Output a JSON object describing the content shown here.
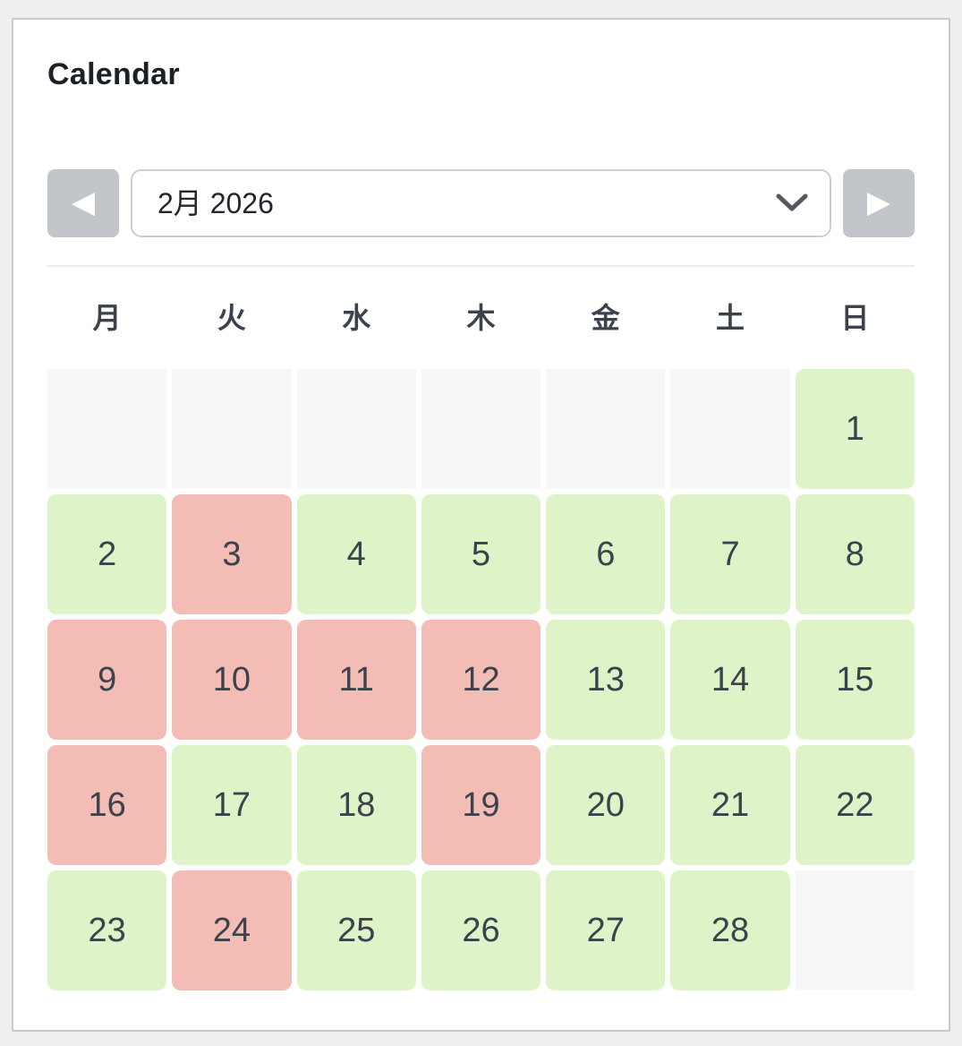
{
  "card": {
    "title": "Calendar"
  },
  "nav": {
    "month_value": "2月 2026"
  },
  "icons": {
    "prev": "◀",
    "next": "▶",
    "chevron": "chevron-down"
  },
  "grid": {
    "weekdays": [
      "月",
      "火",
      "水",
      "木",
      "金",
      "土",
      "日"
    ],
    "cells": [
      {
        "day": "",
        "status": "empty"
      },
      {
        "day": "",
        "status": "empty"
      },
      {
        "day": "",
        "status": "empty"
      },
      {
        "day": "",
        "status": "empty"
      },
      {
        "day": "",
        "status": "empty"
      },
      {
        "day": "",
        "status": "empty"
      },
      {
        "day": "1",
        "status": "available"
      },
      {
        "day": "2",
        "status": "available"
      },
      {
        "day": "3",
        "status": "unavailable"
      },
      {
        "day": "4",
        "status": "available"
      },
      {
        "day": "5",
        "status": "available"
      },
      {
        "day": "6",
        "status": "available"
      },
      {
        "day": "7",
        "status": "available"
      },
      {
        "day": "8",
        "status": "available"
      },
      {
        "day": "9",
        "status": "unavailable"
      },
      {
        "day": "10",
        "status": "unavailable"
      },
      {
        "day": "11",
        "status": "unavailable"
      },
      {
        "day": "12",
        "status": "unavailable"
      },
      {
        "day": "13",
        "status": "available"
      },
      {
        "day": "14",
        "status": "available"
      },
      {
        "day": "15",
        "status": "available"
      },
      {
        "day": "16",
        "status": "unavailable"
      },
      {
        "day": "17",
        "status": "available"
      },
      {
        "day": "18",
        "status": "available"
      },
      {
        "day": "19",
        "status": "unavailable"
      },
      {
        "day": "20",
        "status": "available"
      },
      {
        "day": "21",
        "status": "available"
      },
      {
        "day": "22",
        "status": "available"
      },
      {
        "day": "23",
        "status": "available"
      },
      {
        "day": "24",
        "status": "unavailable"
      },
      {
        "day": "25",
        "status": "available"
      },
      {
        "day": "26",
        "status": "available"
      },
      {
        "day": "27",
        "status": "available"
      },
      {
        "day": "28",
        "status": "available"
      },
      {
        "day": "",
        "status": "empty"
      }
    ],
    "unavailable_days": [
      3,
      9,
      10,
      11,
      12,
      16,
      19,
      24
    ]
  },
  "colors": {
    "available_bg": "#def4c8",
    "unavailable_bg": "#f3bcb5",
    "empty_bg": "#f7f7f8",
    "nav_button_bg": "#c2c6cb",
    "day_text": "#3b424b"
  }
}
